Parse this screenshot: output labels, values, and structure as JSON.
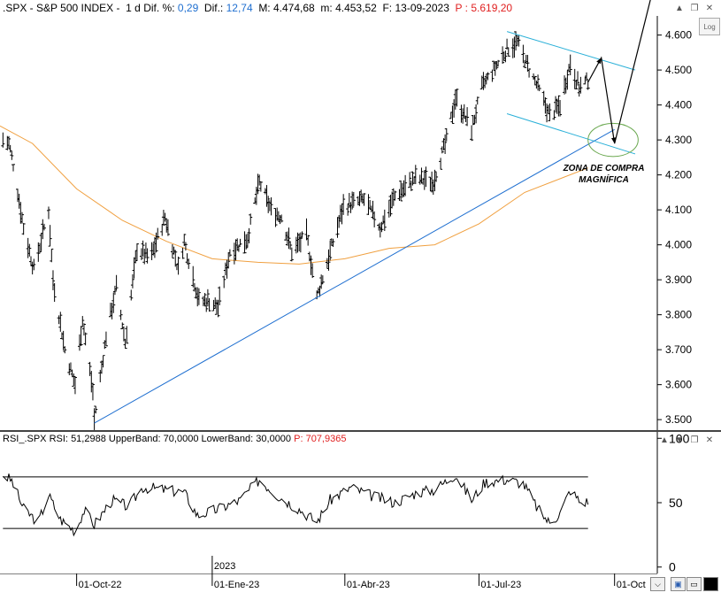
{
  "header": {
    "symbol": ".SPX - S&P 500 INDEX -",
    "period": "1 d",
    "dif_pct_label": "Dif. %:",
    "dif_pct_value": "0,29",
    "dif_label": "Dif.:",
    "dif_value": "12,74",
    "max_label": "M:",
    "max_value": "4.474,68",
    "min_label": "m:",
    "min_value": "4.453,52",
    "date_label": "F:",
    "date_value": "13-09-2023",
    "price_label": "P :",
    "price_value": "5.619,20"
  },
  "rsi_header": {
    "name": "RSI_.SPX",
    "rsi_label": "RSI:",
    "rsi_value": "51,2988",
    "upper_label": "UpperBand:",
    "upper_value": "70,0000",
    "lower_label": "LowerBand:",
    "lower_value": "30,0000",
    "p_label": "P:",
    "p_value": "707,9365"
  },
  "log_button": "Log",
  "annotation": {
    "line1": "ZONA DE COMPRA",
    "line2": "MAGNÍFICA"
  },
  "x_axis": {
    "year_marker": "2023",
    "ticks": [
      "01-Oct-22",
      "01-Ene-23",
      "01-Abr-23",
      "01-Jul-23",
      "01-Oct"
    ]
  },
  "chart_data": [
    {
      "type": "line",
      "chart": "price",
      "y_ticks": [
        "4.600",
        "4.500",
        "4.400",
        "4.300",
        "4.200",
        "4.100",
        "4.000",
        "3.900",
        "3.800",
        "3.700",
        "3.600",
        "3.500"
      ],
      "y_tick_values": [
        4600,
        4500,
        4400,
        4300,
        4200,
        4100,
        4000,
        3900,
        3800,
        3700,
        3600,
        3500
      ],
      "ylim": [
        3470,
        4680
      ],
      "x_range": [
        "2022-08-10",
        "2023-10-30"
      ],
      "price_path": [
        [
          "2022-08-12",
          4300
        ],
        [
          "2022-08-16",
          4290
        ],
        [
          "2022-08-19",
          4230
        ],
        [
          "2022-08-26",
          4050
        ],
        [
          "2022-09-02",
          3930
        ],
        [
          "2022-09-12",
          4100
        ],
        [
          "2022-09-15",
          3900
        ],
        [
          "2022-09-23",
          3700
        ],
        [
          "2022-09-30",
          3600
        ],
        [
          "2022-10-05",
          3790
        ],
        [
          "2022-10-12",
          3580
        ],
        [
          "2022-10-13",
          3500
        ],
        [
          "2022-10-21",
          3740
        ],
        [
          "2022-10-28",
          3880
        ],
        [
          "2022-11-03",
          3720
        ],
        [
          "2022-11-11",
          3990
        ],
        [
          "2022-11-20",
          3960
        ],
        [
          "2022-11-30",
          4080
        ],
        [
          "2022-12-09",
          3930
        ],
        [
          "2022-12-13",
          4010
        ],
        [
          "2022-12-23",
          3840
        ],
        [
          "2022-12-30",
          3840
        ],
        [
          "2023-01-05",
          3820
        ],
        [
          "2023-01-13",
          3980
        ],
        [
          "2023-01-25",
          4020
        ],
        [
          "2023-02-02",
          4180
        ],
        [
          "2023-02-10",
          4100
        ],
        [
          "2023-02-17",
          4080
        ],
        [
          "2023-02-24",
          3980
        ],
        [
          "2023-03-06",
          4030
        ],
        [
          "2023-03-13",
          3850
        ],
        [
          "2023-03-20",
          3950
        ],
        [
          "2023-03-31",
          4110
        ],
        [
          "2023-04-14",
          4130
        ],
        [
          "2023-04-25",
          4050
        ],
        [
          "2023-05-05",
          4140
        ],
        [
          "2023-05-19",
          4190
        ],
        [
          "2023-05-31",
          4180
        ],
        [
          "2023-06-09",
          4300
        ],
        [
          "2023-06-15",
          4420
        ],
        [
          "2023-06-26",
          4330
        ],
        [
          "2023-07-03",
          4450
        ],
        [
          "2023-07-14",
          4520
        ],
        [
          "2023-07-20",
          4560
        ],
        [
          "2023-07-27",
          4580
        ],
        [
          "2023-08-02",
          4520
        ],
        [
          "2023-08-10",
          4450
        ],
        [
          "2023-08-18",
          4370
        ],
        [
          "2023-08-25",
          4400
        ],
        [
          "2023-09-01",
          4520
        ],
        [
          "2023-09-07",
          4450
        ],
        [
          "2023-09-13",
          4470
        ]
      ],
      "moving_average_200": [
        [
          "2022-08-10",
          4340
        ],
        [
          "2022-09-01",
          4290
        ],
        [
          "2022-10-01",
          4160
        ],
        [
          "2022-11-01",
          4070
        ],
        [
          "2022-12-01",
          4010
        ],
        [
          "2023-01-01",
          3960
        ],
        [
          "2023-02-01",
          3950
        ],
        [
          "2023-03-01",
          3945
        ],
        [
          "2023-04-01",
          3960
        ],
        [
          "2023-05-01",
          3990
        ],
        [
          "2023-06-01",
          4000
        ],
        [
          "2023-07-01",
          4060
        ],
        [
          "2023-08-01",
          4150
        ],
        [
          "2023-09-13",
          4220
        ]
      ],
      "trendlines": [
        {
          "name": "support",
          "from": [
            "2022-10-13",
            3490
          ],
          "to": [
            "2023-10-01",
            4330
          ]
        },
        {
          "name": "channel-upper",
          "from": [
            "2023-07-20",
            4610
          ],
          "to": [
            "2023-10-15",
            4500
          ]
        },
        {
          "name": "channel-lower",
          "from": [
            "2023-07-20",
            4375
          ],
          "to": [
            "2023-10-15",
            4260
          ]
        }
      ],
      "projection": [
        [
          "2023-09-13",
          4465
        ],
        [
          "2023-09-22",
          4535
        ],
        [
          "2023-10-01",
          4290
        ],
        [
          "2023-10-30",
          4780
        ]
      ],
      "buy_zone": {
        "center": [
          "2023-09-30",
          4300
        ],
        "x_span_days": 34,
        "y_span": 95
      },
      "colors": {
        "price": "#000000",
        "ma": "#f0a040",
        "trendline": "#1f6fd0",
        "channel": "#2ab0d8",
        "zone": "#6aa84f"
      }
    },
    {
      "type": "line",
      "chart": "rsi",
      "y_ticks": [
        "100",
        "50",
        "0"
      ],
      "y_tick_values": [
        100,
        50,
        0
      ],
      "ylim": [
        -5,
        105
      ],
      "upper_band": 70,
      "lower_band": 30,
      "rsi_path": [
        [
          "2022-08-12",
          72
        ],
        [
          "2022-08-18",
          67
        ],
        [
          "2022-08-26",
          45
        ],
        [
          "2022-09-05",
          35
        ],
        [
          "2022-09-12",
          56
        ],
        [
          "2022-09-20",
          37
        ],
        [
          "2022-09-30",
          28
        ],
        [
          "2022-10-06",
          44
        ],
        [
          "2022-10-13",
          33
        ],
        [
          "2022-10-25",
          52
        ],
        [
          "2022-11-05",
          47
        ],
        [
          "2022-11-15",
          62
        ],
        [
          "2022-11-30",
          60
        ],
        [
          "2022-12-13",
          58
        ],
        [
          "2022-12-22",
          40
        ],
        [
          "2023-01-05",
          45
        ],
        [
          "2023-01-20",
          52
        ],
        [
          "2023-02-02",
          68
        ],
        [
          "2023-02-15",
          55
        ],
        [
          "2023-03-01",
          45
        ],
        [
          "2023-03-13",
          35
        ],
        [
          "2023-03-22",
          52
        ],
        [
          "2023-04-05",
          62
        ],
        [
          "2023-04-20",
          55
        ],
        [
          "2023-05-05",
          50
        ],
        [
          "2023-05-20",
          58
        ],
        [
          "2023-06-01",
          60
        ],
        [
          "2023-06-15",
          72
        ],
        [
          "2023-06-26",
          52
        ],
        [
          "2023-07-05",
          66
        ],
        [
          "2023-07-20",
          68
        ],
        [
          "2023-07-31",
          65
        ],
        [
          "2023-08-10",
          45
        ],
        [
          "2023-08-18",
          34
        ],
        [
          "2023-08-25",
          42
        ],
        [
          "2023-09-01",
          60
        ],
        [
          "2023-09-08",
          50
        ],
        [
          "2023-09-13",
          51
        ]
      ]
    }
  ]
}
